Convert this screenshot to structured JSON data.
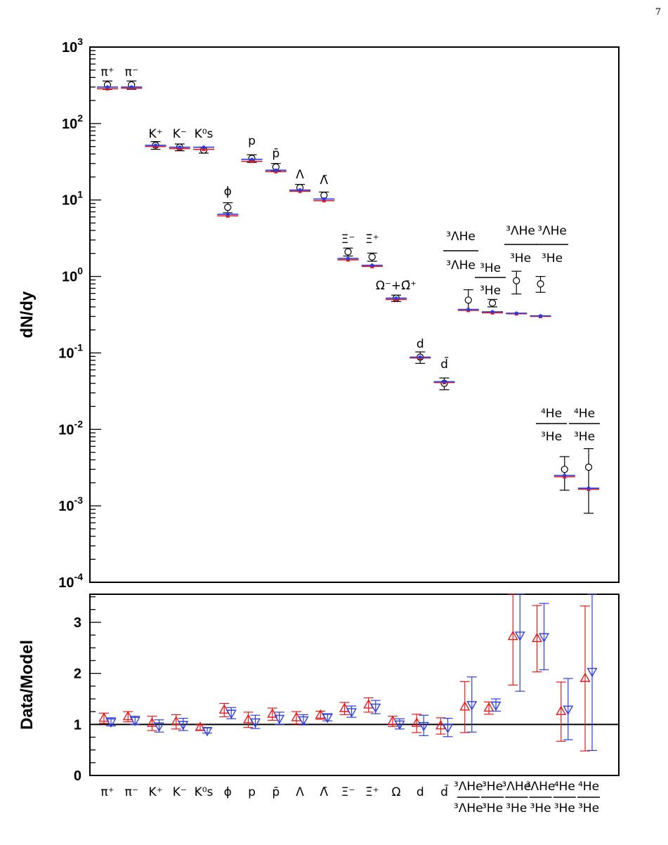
{
  "page_number": "7",
  "chart_data": [
    {
      "type": "scatter",
      "yscale": "log",
      "ylim": [
        0.0001,
        1000
      ],
      "ylabel": "dN/dy",
      "ytick_labels": [
        {
          "base": "10",
          "exp": "3",
          "value": 1000
        },
        {
          "base": "10",
          "exp": "2",
          "value": 100
        },
        {
          "base": "10",
          "exp": "1",
          "value": 10
        },
        {
          "base": "10",
          "exp": "0",
          "value": 1
        },
        {
          "base": "10",
          "exp": "-1",
          "value": 0.1
        },
        {
          "base": "10",
          "exp": "-2",
          "value": 0.01
        },
        {
          "base": "10",
          "exp": "-3",
          "value": 0.001
        },
        {
          "base": "10",
          "exp": "-4",
          "value": 0.0001
        }
      ],
      "annotations": [
        "π⁺",
        "π⁻",
        "K⁺",
        "K⁻",
        "K⁰s",
        "ϕ",
        "p",
        "p̄",
        "Λ",
        "Λ̄",
        "Ξ⁻",
        "Ξ̄⁺",
        "Ω⁻+Ω̄⁺",
        "d",
        "d̄",
        "³ΛHe/³ΛHe",
        "³He/³He",
        "³ΛHe/³He",
        "³ΛHe/³He",
        "⁴He/³He",
        "⁴He/³He"
      ],
      "points": [
        {
          "x": 1,
          "data": 320,
          "err_lo": 40,
          "err_hi": 40,
          "model_red": 285,
          "model_blue": 300
        },
        {
          "x": 2,
          "data": 320,
          "err_lo": 40,
          "err_hi": 40,
          "model_red": 290,
          "model_blue": 300
        },
        {
          "x": 3,
          "data": 52,
          "err_lo": 6,
          "err_hi": 6,
          "model_red": 50,
          "model_blue": 52
        },
        {
          "x": 4,
          "data": 49,
          "err_lo": 5,
          "err_hi": 5,
          "model_red": 47,
          "model_blue": 49
        },
        {
          "x": 5,
          "data": 45,
          "err_lo": 4,
          "err_hi": 4,
          "model_red": 46,
          "model_blue": 49
        },
        {
          "x": 6,
          "data": 8,
          "err_lo": 1.2,
          "err_hi": 1.2,
          "model_red": 6.2,
          "model_blue": 6.5
        },
        {
          "x": 7,
          "data": 35,
          "err_lo": 4,
          "err_hi": 4,
          "model_red": 32,
          "model_blue": 34
        },
        {
          "x": 8,
          "data": 27,
          "err_lo": 3,
          "err_hi": 3,
          "model_red": 23.5,
          "model_blue": 24.5
        },
        {
          "x": 9,
          "data": 14.5,
          "err_lo": 1.5,
          "err_hi": 1.5,
          "model_red": 13,
          "model_blue": 13.5
        },
        {
          "x": 10,
          "data": 11.5,
          "err_lo": 1.2,
          "err_hi": 1.2,
          "model_red": 9.8,
          "model_blue": 10.3
        },
        {
          "x": 11,
          "data": 2.1,
          "err_lo": 0.25,
          "err_hi": 0.25,
          "model_red": 1.65,
          "model_blue": 1.72
        },
        {
          "x": 12,
          "data": 1.8,
          "err_lo": 0.22,
          "err_hi": 0.22,
          "model_red": 1.35,
          "model_blue": 1.4
        },
        {
          "x": 13,
          "data": 0.52,
          "err_lo": 0.05,
          "err_hi": 0.05,
          "model_red": 0.5,
          "model_blue": 0.52
        },
        {
          "x": 14,
          "data": 0.088,
          "err_lo": 0.015,
          "err_hi": 0.015,
          "model_red": 0.086,
          "model_blue": 0.088
        },
        {
          "x": 15,
          "data": 0.04,
          "err_lo": 0.007,
          "err_hi": 0.007,
          "model_red": 0.041,
          "model_blue": 0.042
        },
        {
          "x": 16,
          "data": 0.49,
          "err_lo": 0.13,
          "err_hi": 0.18,
          "model_red": 0.36,
          "model_blue": 0.37
        },
        {
          "x": 17,
          "data": 0.45,
          "err_lo": 0.05,
          "err_hi": 0.05,
          "model_red": 0.335,
          "model_blue": 0.345
        },
        {
          "x": 18,
          "data": 0.88,
          "err_lo": 0.29,
          "err_hi": 0.29,
          "model_red": 0.325,
          "model_blue": 0.33
        },
        {
          "x": 19,
          "data": 0.8,
          "err_lo": 0.18,
          "err_hi": 0.2,
          "model_red": 0.3,
          "model_blue": 0.305
        },
        {
          "x": 20,
          "data": 0.003,
          "err_lo": 0.0014,
          "err_hi": 0.0014,
          "model_red": 0.0024,
          "model_blue": 0.0025
        },
        {
          "x": 21,
          "data": 0.0032,
          "err_lo": 0.0024,
          "err_hi": 0.0024,
          "model_red": 0.00165,
          "model_blue": 0.0017
        }
      ]
    },
    {
      "type": "scatter",
      "ylim": [
        0,
        3.55
      ],
      "ylabel": "Data/Model",
      "ytick_labels": [
        "0",
        "1",
        "2",
        "3"
      ],
      "reference_line": 1,
      "categories": [
        "π⁺",
        "π⁻",
        "K⁺",
        "K⁻",
        "K⁰s",
        "ϕ",
        "p",
        "p̄",
        "Λ",
        "Λ̄",
        "Ξ⁻",
        "Ξ̄⁺",
        "Ω",
        "d",
        "d̄",
        "³ΛHe/³ΛHe",
        "³He/³He",
        "³ΛHe/³He",
        "³ΛHe/³He",
        "⁴He/³He",
        "⁴He/³He"
      ],
      "series": [
        {
          "marker": "triangle-up",
          "color": "#e41a1c",
          "values": [
            1.12,
            1.15,
            1.02,
            1.05,
            0.94,
            1.28,
            1.09,
            1.2,
            1.13,
            1.18,
            1.31,
            1.38,
            1.06,
            1.02,
            0.97,
            1.34,
            1.32,
            2.72,
            2.68,
            1.25,
            1.9
          ],
          "errors": [
            0.1,
            0.1,
            0.14,
            0.14,
            0.05,
            0.13,
            0.15,
            0.12,
            0.12,
            0.08,
            0.12,
            0.14,
            0.1,
            0.18,
            0.16,
            0.5,
            0.12,
            0.95,
            0.65,
            0.58,
            1.42
          ]
        },
        {
          "marker": "triangle-down",
          "color": "#2c3de6",
          "values": [
            1.05,
            1.08,
            0.97,
            1.0,
            0.88,
            1.22,
            1.05,
            1.12,
            1.09,
            1.14,
            1.25,
            1.34,
            1.01,
            0.98,
            0.94,
            1.39,
            1.38,
            2.75,
            2.72,
            1.3,
            2.04
          ],
          "errors": [
            0.08,
            0.08,
            0.12,
            0.12,
            0.05,
            0.11,
            0.13,
            0.12,
            0.1,
            0.07,
            0.11,
            0.13,
            0.1,
            0.2,
            0.18,
            0.54,
            0.12,
            1.1,
            0.65,
            0.6,
            1.55
          ]
        }
      ]
    }
  ]
}
